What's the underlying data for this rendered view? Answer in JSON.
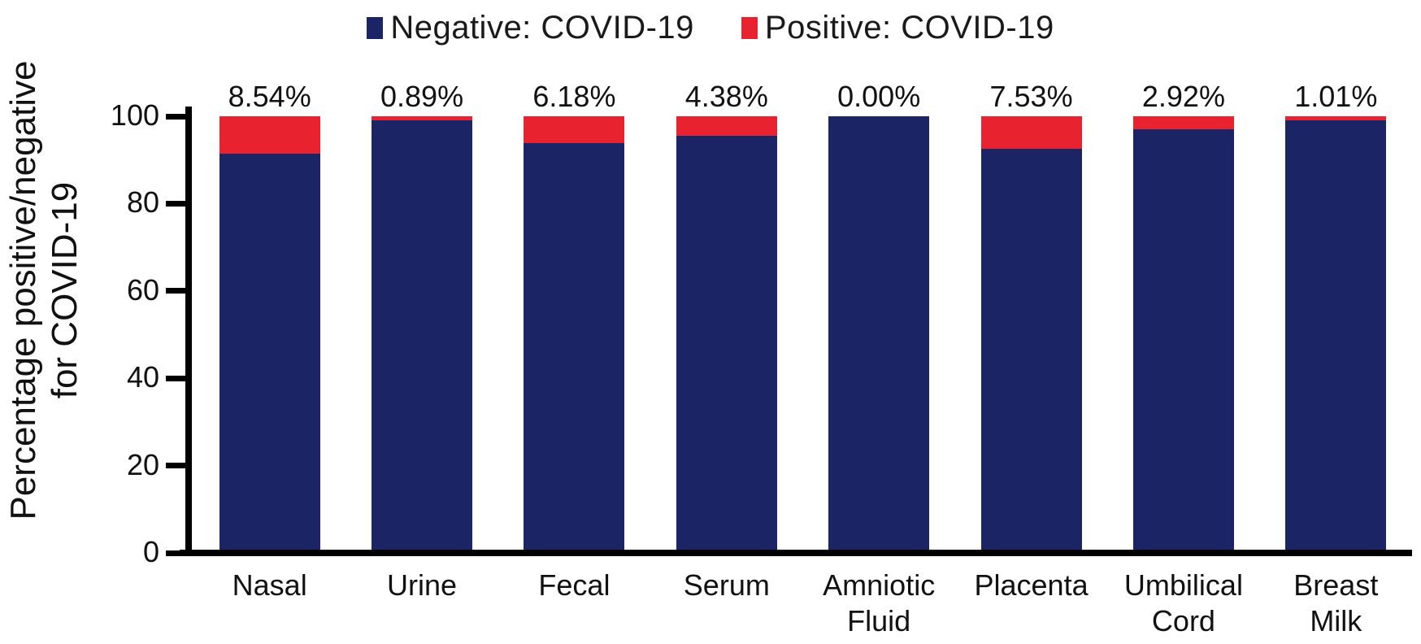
{
  "chart_data": {
    "type": "bar",
    "stacked": true,
    "categories": [
      "Nasal",
      "Urine",
      "Fecal",
      "Serum",
      "Amniotic\nFluid",
      "Placenta",
      "Umbilical\nCord",
      "Breast\nMilk"
    ],
    "series": [
      {
        "name": "Negative: COVID-19",
        "color": "#1B2566",
        "values": [
          91.46,
          99.11,
          93.82,
          95.62,
          100.0,
          92.47,
          97.08,
          98.99
        ]
      },
      {
        "name": "Positive: COVID-19",
        "color": "#E9222F",
        "values": [
          8.54,
          0.89,
          6.18,
          4.38,
          0.0,
          7.53,
          2.92,
          1.01
        ]
      }
    ],
    "bar_value_labels": [
      "8.54%",
      "0.89%",
      "6.18%",
      "4.38%",
      "0.00%",
      "7.53%",
      "2.92%",
      "1.01%"
    ],
    "ylabel_lines": [
      "Percentage positive/negative",
      "for COVID-19"
    ],
    "yticks": [
      0,
      20,
      40,
      60,
      80,
      100
    ],
    "ylim": [
      0,
      100
    ],
    "legend_position": "top",
    "grid": false,
    "axis_color": "#000000",
    "text_color": "#111111"
  }
}
